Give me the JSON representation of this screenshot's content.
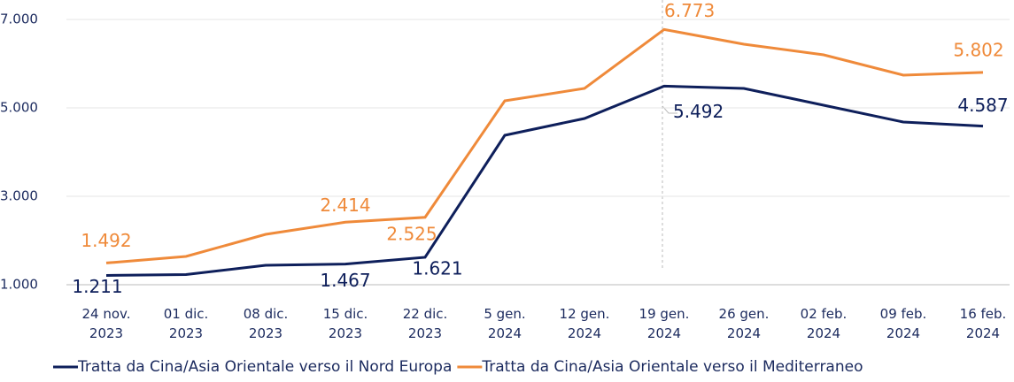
{
  "chart_data": {
    "type": "line",
    "categories": [
      "24 nov.\n2023",
      "01 dic.\n2023",
      "08 dic.\n2023",
      "15 dic.\n2023",
      "22 dic.\n2023",
      "5 gen.\n2024",
      "12 gen.\n2024",
      "19 gen.\n2024",
      "26 gen.\n2024",
      "02 feb.\n2024",
      "09 feb.\n2024",
      "16 feb.\n2024"
    ],
    "series": [
      {
        "name": "Tratta da Cina/Asia Orientale verso il Nord Europa",
        "color": "#0e1f5b",
        "values": [
          1211,
          1230,
          1440,
          1467,
          1621,
          4380,
          4760,
          5492,
          5440,
          5060,
          4680,
          4587
        ],
        "value_labels": [
          "1.211",
          null,
          null,
          "1.467",
          "1.621",
          null,
          null,
          "5.492",
          null,
          null,
          null,
          "4.587"
        ]
      },
      {
        "name": "Tratta da Cina/Asia Orientale verso il Mediterraneo",
        "color": "#ef8a3a",
        "values": [
          1492,
          1640,
          2140,
          2414,
          2525,
          5160,
          5440,
          6773,
          6440,
          6200,
          5740,
          5802
        ],
        "value_labels": [
          "1.492",
          null,
          null,
          "2.414",
          "2.525",
          null,
          null,
          "6.773",
          null,
          null,
          null,
          "5.802"
        ]
      }
    ],
    "ylim": [
      1000,
      7000
    ],
    "yticks": [
      {
        "value": 1000,
        "label": "1.000"
      },
      {
        "value": 3000,
        "label": "3.000"
      },
      {
        "value": 5000,
        "label": "5.000"
      },
      {
        "value": 7000,
        "label": "7.000"
      }
    ],
    "grid": true,
    "legend": "bottom"
  }
}
